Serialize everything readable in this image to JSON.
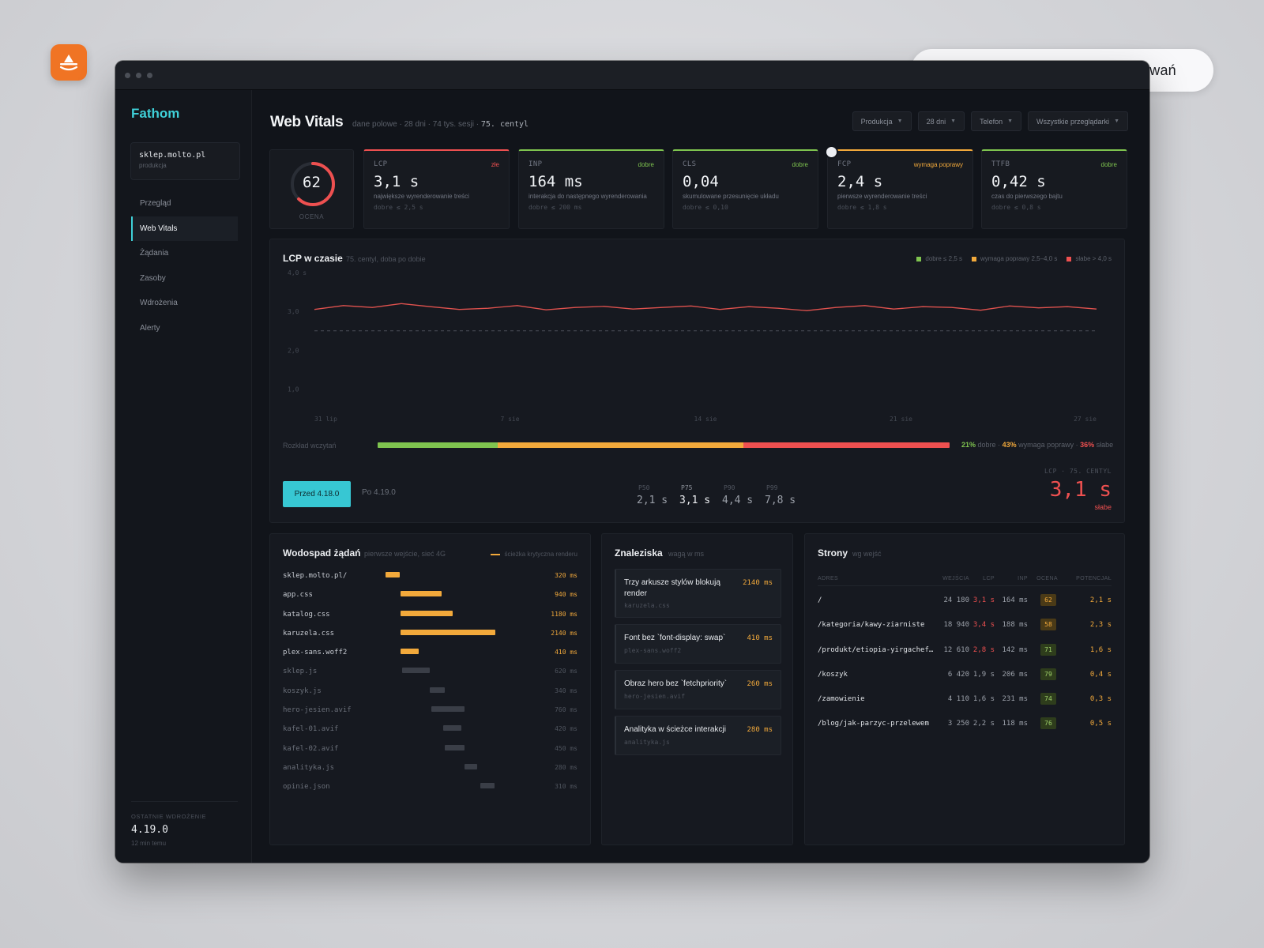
{
  "pill_text": "Audyt techniczny · Karta sondowań",
  "colors": {
    "accent": "#3fd0d8",
    "good": "#7fc44f",
    "needs": "#f2a93b",
    "poor": "#ee5050",
    "badge": "#f07424"
  },
  "sidebar": {
    "brand": "Fathom",
    "site": {
      "name": "sklep.molto.pl",
      "env": "produkcja"
    },
    "items": [
      {
        "label": "Przegląd",
        "active": false
      },
      {
        "label": "Web Vitals",
        "active": true
      },
      {
        "label": "Żądania",
        "active": false
      },
      {
        "label": "Zasoby",
        "active": false
      },
      {
        "label": "Wdrożenia",
        "active": false
      },
      {
        "label": "Alerty",
        "active": false
      }
    ],
    "deploy": {
      "label": "OSTATNIE WDROŻENIE",
      "version": "4.19.0",
      "time": "12 min temu"
    }
  },
  "header": {
    "title": "Web Vitals",
    "subtitle": "dane polowe · 28 dni · 74 tys. sesji ·",
    "subtitle_strong": "75. centyl",
    "filters": [
      "Produkcja",
      "28 dni",
      "Telefon",
      "Wszystkie przeglądarki"
    ]
  },
  "score": {
    "value": "62",
    "fraction": 0.62,
    "label": "OCENA"
  },
  "metrics": [
    {
      "name": "LCP",
      "status": "złe",
      "status_color": "#ee5050",
      "value": "3,1 s",
      "desc": "największe wyrenderowanie treści",
      "threshold": "dobre ≤ 2,5 s"
    },
    {
      "name": "INP",
      "status": "dobre",
      "status_color": "#7fc44f",
      "value": "164 ms",
      "desc": "interakcja do następnego wyrenderowania",
      "threshold": "dobre ≤ 200 ms"
    },
    {
      "name": "CLS",
      "status": "dobre",
      "status_color": "#7fc44f",
      "value": "0,04",
      "desc": "skumulowane przesunięcie układu",
      "threshold": "dobre ≤ 0,10"
    },
    {
      "name": "FCP",
      "status": "wymaga poprawy",
      "status_color": "#f2a93b",
      "value": "2,4 s",
      "desc": "pierwsze wyrenderowanie treści",
      "threshold": "dobre ≤ 1,8 s"
    },
    {
      "name": "TTFB",
      "status": "dobre",
      "status_color": "#7fc44f",
      "value": "0,42 s",
      "desc": "czas do pierwszego bajtu",
      "threshold": "dobre ≤ 0,8 s"
    }
  ],
  "lcp_chart": {
    "title": "LCP w czasie",
    "subtitle": "75. centyl, doba po dobie",
    "legend": [
      {
        "label": "dobre ≤ 2,5 s",
        "color": "#7fc44f"
      },
      {
        "label": "wymaga poprawy 2,5–4,0 s",
        "color": "#f2a93b"
      },
      {
        "label": "słabe > 4,0 s",
        "color": "#ee5050"
      }
    ],
    "distribution_label": "Rozkład wczytań",
    "distribution": {
      "good": "21%",
      "good_label": "dobre",
      "needs": "43%",
      "needs_label": "wymaga poprawy",
      "poor": "36%",
      "poor_label": "słabe",
      "good_frac": 0.21,
      "needs_frac": 0.43,
      "poor_frac": 0.36
    },
    "button_before": "Przed 4.18.0",
    "button_after": "Po 4.19.0",
    "percentiles": [
      {
        "label": "P50",
        "value": "2,1 s"
      },
      {
        "label": "P75",
        "value": "3,1 s"
      },
      {
        "label": "P90",
        "value": "4,4 s"
      },
      {
        "label": "P99",
        "value": "7,8 s"
      }
    ],
    "big_label": "LCP · 75. CENTYL",
    "big_value": "3,1 s",
    "big_status": "słabe"
  },
  "chart_data": {
    "type": "line",
    "title": "LCP w czasie",
    "yticks": [
      "4,0 s",
      "3,0",
      "2,0",
      "1,0"
    ],
    "xticks": [
      "31 lip",
      "7 sie",
      "14 sie",
      "21 sie",
      "27 sie"
    ],
    "ylim": [
      0.5,
      4.0
    ],
    "threshold": 2.5,
    "x": [
      "31 lip",
      "1 sie",
      "2 sie",
      "3 sie",
      "4 sie",
      "5 sie",
      "6 sie",
      "7 sie",
      "8 sie",
      "9 sie",
      "10 sie",
      "11 sie",
      "12 sie",
      "13 sie",
      "14 sie",
      "15 sie",
      "16 sie",
      "17 sie",
      "18 sie",
      "19 sie",
      "20 sie",
      "21 sie",
      "22 sie",
      "23 sie",
      "24 sie",
      "25 sie",
      "26 sie",
      "27 sie"
    ],
    "series": [
      {
        "values": [
          3.05,
          3.15,
          3.1,
          3.2,
          3.12,
          3.05,
          3.08,
          3.15,
          3.04,
          3.1,
          3.13,
          3.06,
          3.1,
          3.14,
          3.05,
          3.12,
          3.08,
          3.02,
          3.1,
          3.15,
          3.06,
          3.12,
          3.1,
          3.03,
          3.14,
          3.09,
          3.12,
          3.06
        ]
      }
    ]
  },
  "waterfall": {
    "title": "Wodospad żądań",
    "subtitle": "pierwsze wejście, sieć 4G",
    "legend": "ścieżka krytyczna renderu",
    "rows": [
      {
        "name": "sklep.molto.pl/",
        "ms": "320 ms",
        "start": 0.0,
        "dur": 0.072,
        "critical": true
      },
      {
        "name": "app.css",
        "ms": "940 ms",
        "start": 0.075,
        "dur": 0.21,
        "critical": true
      },
      {
        "name": "katalog.css",
        "ms": "1180 ms",
        "start": 0.075,
        "dur": 0.265,
        "critical": true
      },
      {
        "name": "karuzela.css",
        "ms": "2140 ms",
        "start": 0.077,
        "dur": 0.48,
        "critical": true
      },
      {
        "name": "plex-sans.woff2",
        "ms": "410 ms",
        "start": 0.077,
        "dur": 0.092,
        "critical": true
      },
      {
        "name": "sklep.js",
        "ms": "620 ms",
        "start": 0.085,
        "dur": 0.139,
        "critical": false
      },
      {
        "name": "koszyk.js",
        "ms": "340 ms",
        "start": 0.225,
        "dur": 0.076,
        "critical": false
      },
      {
        "name": "hero-jesien.avif",
        "ms": "760 ms",
        "start": 0.23,
        "dur": 0.17,
        "critical": false
      },
      {
        "name": "kafel-01.avif",
        "ms": "420 ms",
        "start": 0.29,
        "dur": 0.094,
        "critical": false
      },
      {
        "name": "kafel-02.avif",
        "ms": "450 ms",
        "start": 0.3,
        "dur": 0.1,
        "critical": false
      },
      {
        "name": "analityka.js",
        "ms": "280 ms",
        "start": 0.4,
        "dur": 0.063,
        "critical": false
      },
      {
        "name": "opinie.json",
        "ms": "310 ms",
        "start": 0.48,
        "dur": 0.07,
        "critical": false
      }
    ]
  },
  "findings": {
    "title": "Znaleziska",
    "subtitle": "wagą w ms",
    "items": [
      {
        "title": "Trzy arkusze stylów blokują render",
        "ms": "2140 ms",
        "file": "karuzela.css"
      },
      {
        "title": "Font bez `font-display: swap`",
        "ms": "410 ms",
        "file": "plex-sans.woff2"
      },
      {
        "title": "Obraz hero bez `fetchpriority`",
        "ms": "260 ms",
        "file": "hero-jesien.avif"
      },
      {
        "title": "Analityka w ścieżce interakcji",
        "ms": "280 ms",
        "file": "analityka.js"
      }
    ]
  },
  "pages": {
    "title": "Strony",
    "subtitle": "wg wejść",
    "headers": {
      "addr": "ADRES",
      "visits": "WEJŚCIA",
      "lcp": "LCP",
      "inp": "INP",
      "score": "OCENA",
      "pot": "POTENCJAŁ"
    },
    "rows": [
      {
        "addr": "/",
        "visits": "24 180",
        "lcp": "3,1 s",
        "lcp_color": "#ee5050",
        "inp": "164 ms",
        "score": "62",
        "score_bg": "#4a3a17",
        "score_color": "#f2a93b",
        "pot": "2,1 s"
      },
      {
        "addr": "/kategoria/kawy-ziarniste",
        "visits": "18 940",
        "lcp": "3,4 s",
        "lcp_color": "#ee5050",
        "inp": "188 ms",
        "score": "58",
        "score_bg": "#4a3a17",
        "score_color": "#f2a93b",
        "pot": "2,3 s"
      },
      {
        "addr": "/produkt/etiopia-yirgachef…",
        "visits": "12 610",
        "lcp": "2,8 s",
        "lcp_color": "#ee5050",
        "inp": "142 ms",
        "score": "71",
        "score_bg": "#2e3d1c",
        "score_color": "#9fd16a",
        "pot": "1,6 s"
      },
      {
        "addr": "/koszyk",
        "visits": "6 420",
        "lcp": "1,9 s",
        "lcp_color": "#9ca1aa",
        "inp": "206 ms",
        "score": "79",
        "score_bg": "#2e3d1c",
        "score_color": "#9fd16a",
        "pot": "0,4 s"
      },
      {
        "addr": "/zamowienie",
        "visits": "4 110",
        "lcp": "1,6 s",
        "lcp_color": "#9ca1aa",
        "inp": "231 ms",
        "score": "74",
        "score_bg": "#2e3d1c",
        "score_color": "#9fd16a",
        "pot": "0,3 s"
      },
      {
        "addr": "/blog/jak-parzyc-przelewem",
        "visits": "3 250",
        "lcp": "2,2 s",
        "lcp_color": "#9ca1aa",
        "inp": "118 ms",
        "score": "76",
        "score_bg": "#2e3d1c",
        "score_color": "#9fd16a",
        "pot": "0,5 s"
      }
    ]
  }
}
